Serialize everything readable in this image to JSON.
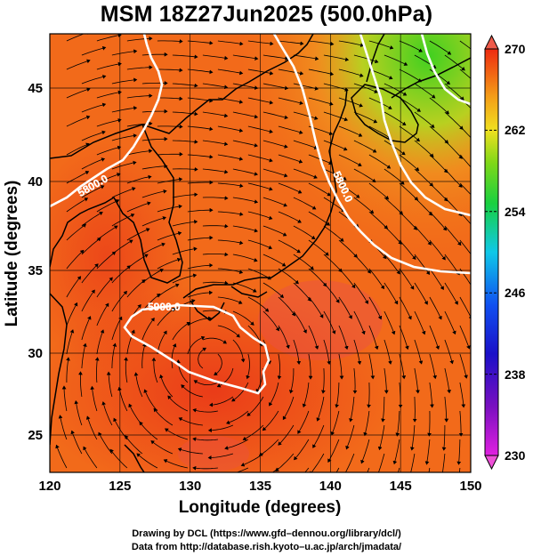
{
  "title": "MSM 18Z27Jun2025 (500.0hPa)",
  "xaxis": {
    "label": "Longitude (degrees)",
    "ticks": [
      "120",
      "125",
      "130",
      "135",
      "140",
      "145",
      "150"
    ],
    "range": [
      120,
      150
    ]
  },
  "yaxis": {
    "label": "Latitude  (degrees)",
    "ticks": [
      "25",
      "30",
      "35",
      "40",
      "45"
    ],
    "range": [
      22.5,
      47.6
    ]
  },
  "colorbar": {
    "ticks": [
      "270",
      "262",
      "254",
      "246",
      "238",
      "230"
    ],
    "range": [
      230,
      270
    ]
  },
  "contours": [
    {
      "label": "5800.0",
      "value": 5800.0
    },
    {
      "label": "5900.0",
      "value": 5900.0
    }
  ],
  "footer": {
    "line1": "Drawing by DCL (https://www.gfd–dennou.org/library/dcl/)",
    "line2": "Data from http://database.rish.kyoto–u.ac.jp/arch/jmadata/"
  },
  "colors": {
    "warm": "#f03c14",
    "orange": "#f47a18",
    "yellow": "#e8c43a",
    "green": "#58d020",
    "contour": "#ffffff"
  }
}
